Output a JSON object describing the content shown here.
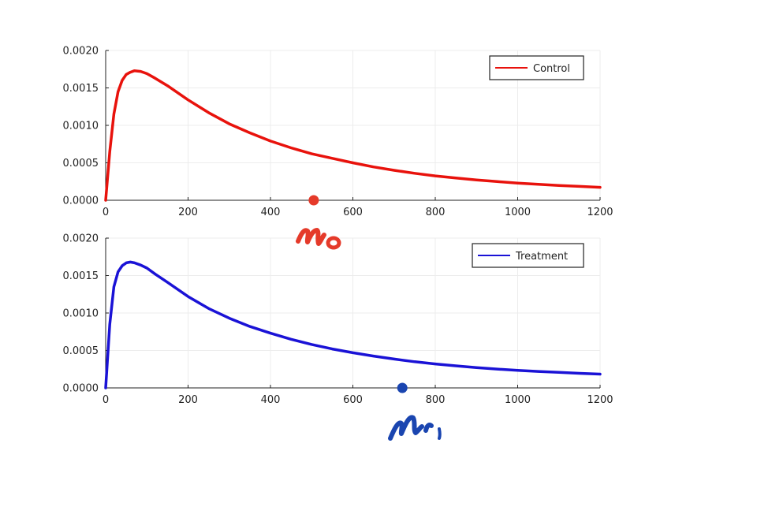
{
  "chart_data": [
    {
      "type": "line",
      "title": "",
      "xlabel": "",
      "ylabel": "",
      "xlim": [
        0,
        1200
      ],
      "ylim": [
        0,
        0.002
      ],
      "x_ticks": [
        "0",
        "200",
        "400",
        "600",
        "800",
        "1000",
        "1200"
      ],
      "y_ticks": [
        "0.0000",
        "0.0005",
        "0.0010",
        "0.0015",
        "0.0020"
      ],
      "grid": true,
      "legend_position": "top-right",
      "series": [
        {
          "name": "Control",
          "color": "#e8120c",
          "x": [
            0,
            10,
            20,
            30,
            40,
            50,
            60,
            70,
            85,
            100,
            120,
            150,
            200,
            250,
            300,
            350,
            400,
            450,
            500,
            550,
            600,
            650,
            700,
            750,
            800,
            850,
            900,
            950,
            1000,
            1050,
            1100,
            1150,
            1200
          ],
          "y": [
            0,
            0.00065,
            0.00115,
            0.00145,
            0.0016,
            0.00168,
            0.00171,
            0.00173,
            0.00172,
            0.00169,
            0.00163,
            0.00153,
            0.00134,
            0.00117,
            0.00102,
            0.0009,
            0.00079,
            0.0007,
            0.00062,
            0.00056,
            0.0005,
            0.000445,
            0.0004,
            0.00036,
            0.000325,
            0.000298,
            0.000272,
            0.00025,
            0.00023,
            0.000213,
            0.000198,
            0.000185,
            0.000173
          ]
        }
      ],
      "annotations": [
        {
          "kind": "dot",
          "label": "μ₀",
          "x": 505,
          "y": 0,
          "color": "#e53a2a"
        }
      ]
    },
    {
      "type": "line",
      "title": "",
      "xlabel": "",
      "ylabel": "",
      "xlim": [
        0,
        1200
      ],
      "ylim": [
        0,
        0.002
      ],
      "x_ticks": [
        "0",
        "200",
        "400",
        "600",
        "800",
        "1000",
        "1200"
      ],
      "y_ticks": [
        "0.0000",
        "0.0005",
        "0.0010",
        "0.0015",
        "0.0020"
      ],
      "grid": true,
      "legend_position": "top-right",
      "series": [
        {
          "name": "Treatment",
          "color": "#1a12d6",
          "x": [
            0,
            10,
            20,
            30,
            40,
            50,
            60,
            70,
            85,
            100,
            120,
            150,
            200,
            250,
            300,
            350,
            400,
            450,
            500,
            550,
            600,
            650,
            700,
            750,
            800,
            850,
            900,
            950,
            1000,
            1050,
            1100,
            1150,
            1200
          ],
          "y": [
            0,
            0.00085,
            0.00135,
            0.00155,
            0.00163,
            0.00167,
            0.00168,
            0.00167,
            0.00164,
            0.0016,
            0.00152,
            0.00141,
            0.00122,
            0.00106,
            0.00093,
            0.00082,
            0.00073,
            0.00065,
            0.00058,
            0.00052,
            0.00047,
            0.000425,
            0.000385,
            0.00035,
            0.00032,
            0.000295,
            0.000272,
            0.000252,
            0.000235,
            0.00022,
            0.000207,
            0.000195,
            0.000184
          ]
        }
      ],
      "annotations": [
        {
          "kind": "dot",
          "label": "μ₁",
          "x": 720,
          "y": 0,
          "color": "#1a45b0"
        }
      ]
    }
  ]
}
